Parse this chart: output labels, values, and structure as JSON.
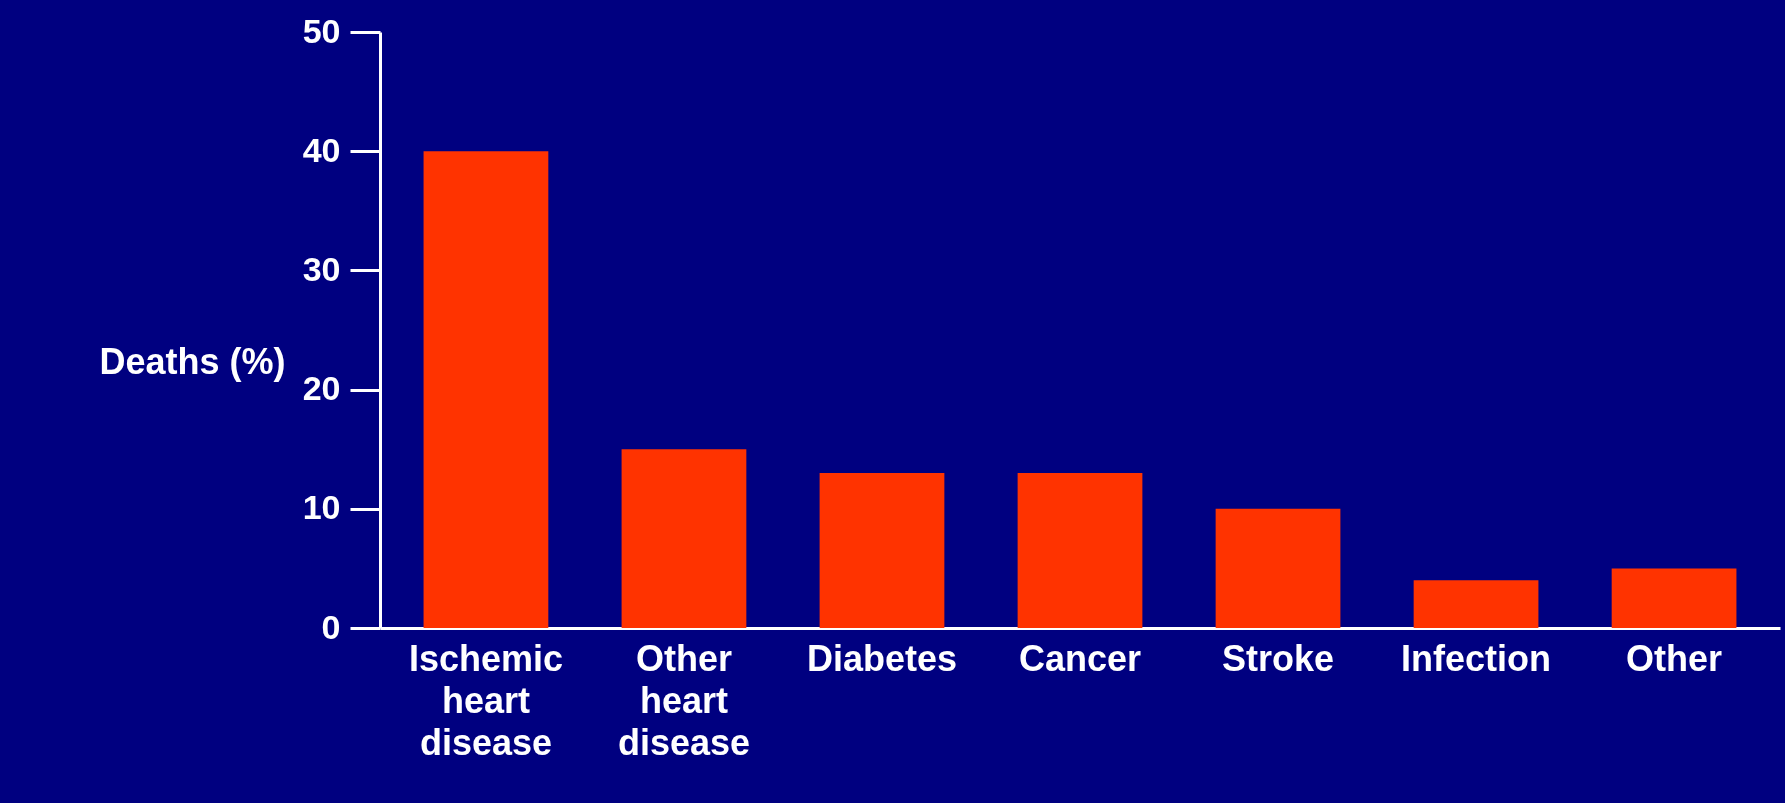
{
  "chart_data": {
    "type": "bar",
    "ylabel": "Deaths (%)",
    "categories": [
      "Ischemic heart disease",
      "Other heart disease",
      "Diabetes",
      "Cancer",
      "Stroke",
      "Infection",
      "Other"
    ],
    "values": [
      40,
      15,
      13,
      13,
      10,
      4,
      5
    ],
    "color": "#ff3300",
    "ylim": [
      0,
      50
    ],
    "yticks": [
      0,
      10,
      20,
      30,
      40,
      50
    ],
    "grid": false
  }
}
